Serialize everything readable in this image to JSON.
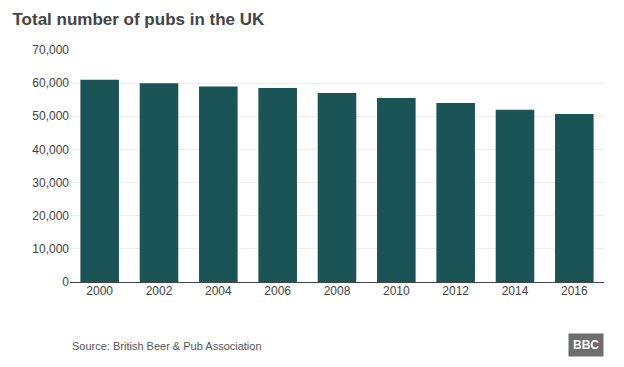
{
  "chart_data": {
    "type": "bar",
    "title": "Total number of pubs in the UK",
    "categories": [
      "2000",
      "2002",
      "2004",
      "2006",
      "2008",
      "2010",
      "2012",
      "2014",
      "2016"
    ],
    "values": [
      61000,
      60000,
      59000,
      58500,
      57000,
      55500,
      54000,
      52000,
      50700
    ],
    "color": "#1a5457",
    "ylim": [
      0,
      70000
    ],
    "yticks": [
      0,
      {
        "value": 10000,
        "label": "10,000"
      },
      {
        "value": 20000,
        "label": "20,000"
      },
      {
        "value": 30000,
        "label": "30,000"
      },
      {
        "value": 40000,
        "label": "40,000"
      },
      {
        "value": 50000,
        "label": "50,000"
      },
      {
        "value": 60000,
        "label": "60,000"
      },
      {
        "value": 70000,
        "label": "70,000"
      }
    ],
    "grid": true,
    "annotations": [
      "Source: British Beer & Pub Association",
      "BBC"
    ]
  }
}
